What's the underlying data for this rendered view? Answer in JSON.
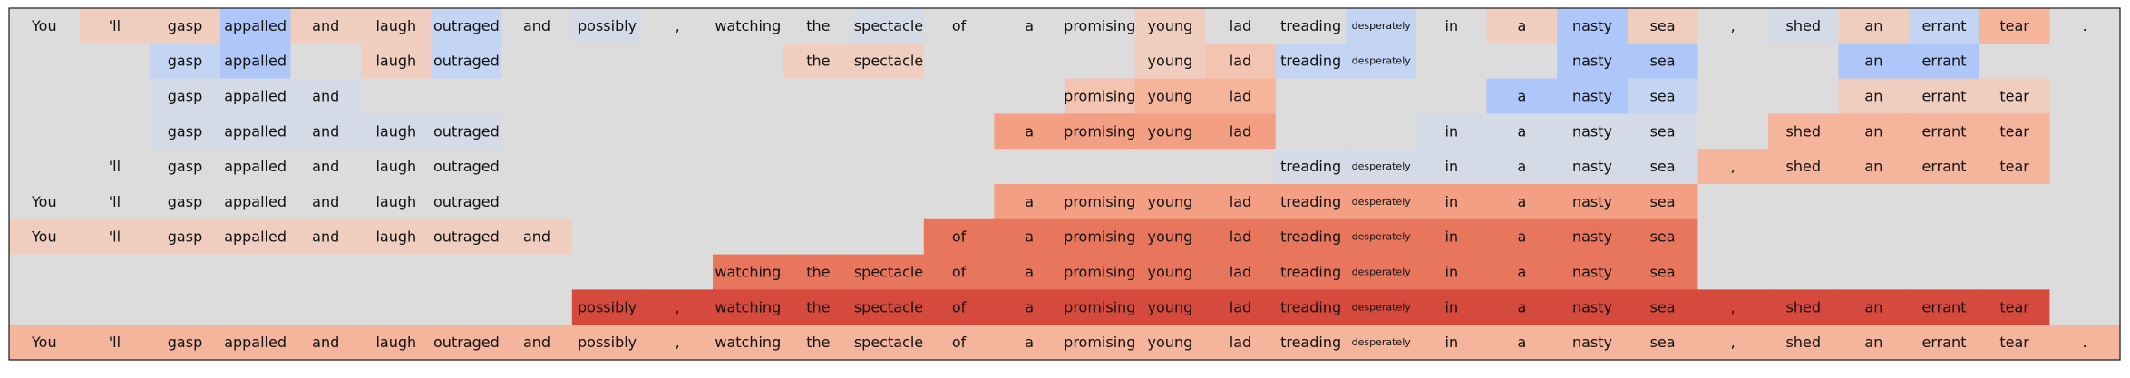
{
  "chart_data": {
    "type": "heatmap",
    "title": "",
    "xlabel": "",
    "ylabel": "",
    "grid": false,
    "legend": "none",
    "tokens": [
      "You",
      "'ll",
      "gasp",
      "appalled",
      "and",
      "laugh",
      "outraged",
      "and",
      "possibly",
      ",",
      "watching",
      "the",
      "spectacle",
      "of",
      "a",
      "promising",
      "young",
      "lad",
      "treading",
      "desperately",
      "in",
      "a",
      "nasty",
      "sea",
      ",",
      "shed",
      "an",
      "errant",
      "tear",
      "."
    ],
    "small_tokens": [
      19
    ],
    "colors": {
      "neutral": "#dddcdc",
      "background_row": "#dddcdc",
      "palette": {
        "b3": "#aec7f8",
        "b2": "#c4d4f3",
        "b1": "#d4dbe6",
        "r1": "#efcebf",
        "r2": "#f2c4b1",
        "r3": "#f5b59c",
        "r4": "#f29f83",
        "r5": "#e8765c",
        "r6": "#d64a3e"
      }
    },
    "rows": [
      {
        "cells": [
          "n",
          "r1",
          "r1",
          "b3",
          "r1",
          "r1",
          "b2",
          "n",
          "b1",
          "n",
          "n",
          "n",
          "b1",
          "n",
          "n",
          "n",
          "r1",
          "n",
          "n",
          "b2",
          "n",
          "r1",
          "b3",
          "r1",
          "n",
          "b1",
          "r1",
          "b2",
          "r3",
          "n"
        ]
      },
      {
        "visible": [
          2,
          3,
          5,
          6,
          11,
          12,
          16,
          17,
          18,
          19,
          22,
          23,
          26,
          27
        ],
        "cells": [
          "n",
          "n",
          "b2",
          "b3",
          "n",
          "r1",
          "b2",
          "n",
          "n",
          "n",
          "n",
          "r1",
          "r1",
          "n",
          "n",
          "n",
          "r1",
          "r2",
          "b2",
          "b2",
          "n",
          "n",
          "b3",
          "b3",
          "n",
          "n",
          "b3",
          "b3",
          "n",
          "n"
        ]
      },
      {
        "visible": [
          2,
          3,
          4,
          15,
          16,
          17,
          21,
          22,
          23,
          26,
          27,
          28
        ],
        "cells": [
          "n",
          "n",
          "b1",
          "b1",
          "b1",
          "n",
          "n",
          "n",
          "n",
          "n",
          "n",
          "n",
          "n",
          "n",
          "n",
          "r2",
          "r3",
          "r3",
          "n",
          "n",
          "n",
          "b3",
          "b3",
          "b2",
          "n",
          "n",
          "r1",
          "r1",
          "r1",
          "n"
        ]
      },
      {
        "visible": [
          2,
          3,
          4,
          5,
          6,
          14,
          15,
          16,
          17,
          20,
          21,
          22,
          23,
          25,
          26,
          27,
          28
        ],
        "cells": [
          "n",
          "n",
          "b1",
          "b1",
          "b1",
          "b1",
          "b1",
          "n",
          "n",
          "n",
          "n",
          "n",
          "n",
          "n",
          "r4",
          "r4",
          "r4",
          "r4",
          "n",
          "n",
          "b1",
          "b1",
          "b1",
          "b1",
          "n",
          "r3",
          "r3",
          "r3",
          "r3",
          "n"
        ]
      },
      {
        "visible": [
          1,
          2,
          3,
          4,
          5,
          6,
          18,
          19,
          20,
          21,
          22,
          23,
          24,
          25,
          26,
          27,
          28
        ],
        "cells": [
          "n",
          "n",
          "n",
          "n",
          "n",
          "n",
          "n",
          "n",
          "n",
          "n",
          "n",
          "n",
          "n",
          "n",
          "n",
          "n",
          "n",
          "n",
          "b1",
          "b1",
          "b1",
          "b1",
          "b1",
          "b1",
          "r3",
          "r3",
          "r3",
          "r3",
          "r3",
          "n"
        ]
      },
      {
        "visible": [
          0,
          1,
          2,
          3,
          4,
          5,
          6,
          14,
          15,
          16,
          17,
          18,
          19,
          20,
          21,
          22,
          23
        ],
        "cells": [
          "n",
          "n",
          "n",
          "n",
          "n",
          "n",
          "n",
          "n",
          "n",
          "n",
          "n",
          "n",
          "n",
          "n",
          "r4",
          "r4",
          "r4",
          "r4",
          "r4",
          "r4",
          "r4",
          "r4",
          "r4",
          "r4",
          "n",
          "n",
          "n",
          "n",
          "n",
          "n"
        ]
      },
      {
        "visible": [
          0,
          1,
          2,
          3,
          4,
          5,
          6,
          7,
          13,
          14,
          15,
          16,
          17,
          18,
          19,
          20,
          21,
          22,
          23
        ],
        "cells": [
          "r1",
          "r1",
          "r1",
          "r1",
          "r1",
          "r1",
          "r1",
          "r1",
          "n",
          "n",
          "n",
          "n",
          "n",
          "r5",
          "r5",
          "r5",
          "r5",
          "r5",
          "r5",
          "r5",
          "r5",
          "r5",
          "r5",
          "r5",
          "n",
          "n",
          "n",
          "n",
          "n",
          "n"
        ]
      },
      {
        "visible": [
          10,
          11,
          12,
          13,
          14,
          15,
          16,
          17,
          18,
          19,
          20,
          21,
          22,
          23
        ],
        "cells": [
          "n",
          "n",
          "n",
          "n",
          "n",
          "n",
          "n",
          "n",
          "n",
          "n",
          "r5",
          "r5",
          "r5",
          "r5",
          "r5",
          "r5",
          "r5",
          "r5",
          "r5",
          "r5",
          "r5",
          "r5",
          "r5",
          "r5",
          "n",
          "n",
          "n",
          "n",
          "n",
          "n"
        ]
      },
      {
        "visible": [
          8,
          9,
          10,
          11,
          12,
          13,
          14,
          15,
          16,
          17,
          18,
          19,
          20,
          21,
          22,
          23,
          24,
          25,
          26,
          27,
          28
        ],
        "cells": [
          "n",
          "n",
          "n",
          "n",
          "n",
          "n",
          "n",
          "n",
          "r6",
          "r6",
          "r6",
          "r6",
          "r6",
          "r6",
          "r6",
          "r6",
          "r6",
          "r6",
          "r6",
          "r6",
          "r6",
          "r6",
          "r6",
          "r6",
          "r6",
          "r6",
          "r6",
          "r6",
          "r6",
          "n"
        ]
      },
      {
        "cells": [
          "r3",
          "r3",
          "r3",
          "r3",
          "r3",
          "r3",
          "r3",
          "r3",
          "r3",
          "r3",
          "r3",
          "r3",
          "r3",
          "r3",
          "r3",
          "r3",
          "r3",
          "r3",
          "r3",
          "r3",
          "r3",
          "r3",
          "r3",
          "r3",
          "r3",
          "r3",
          "r3",
          "r3",
          "r3",
          "r3"
        ]
      }
    ]
  }
}
